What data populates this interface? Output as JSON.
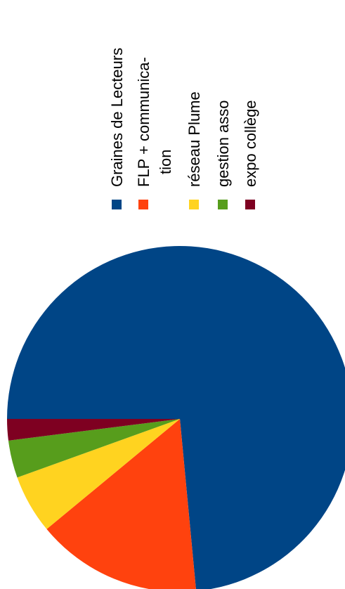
{
  "chart_data": {
    "type": "pie",
    "title": "",
    "legend_placement": "top (rotated)",
    "slices": [
      {
        "label": "Graines de Lecteurs",
        "value": 73.5,
        "color": "#004586"
      },
      {
        "label": "FLP + communication",
        "label_lines": [
          "FLP + communica-",
          "tion"
        ],
        "value": 15.5,
        "color": "#ff420e"
      },
      {
        "label": "réseau Plume",
        "value": 5.5,
        "color": "#ffd320"
      },
      {
        "label": "gestion asso",
        "value": 3.5,
        "color": "#579d1c"
      },
      {
        "label": "expo collège",
        "value": 2.0,
        "color": "#7e0021"
      }
    ]
  }
}
